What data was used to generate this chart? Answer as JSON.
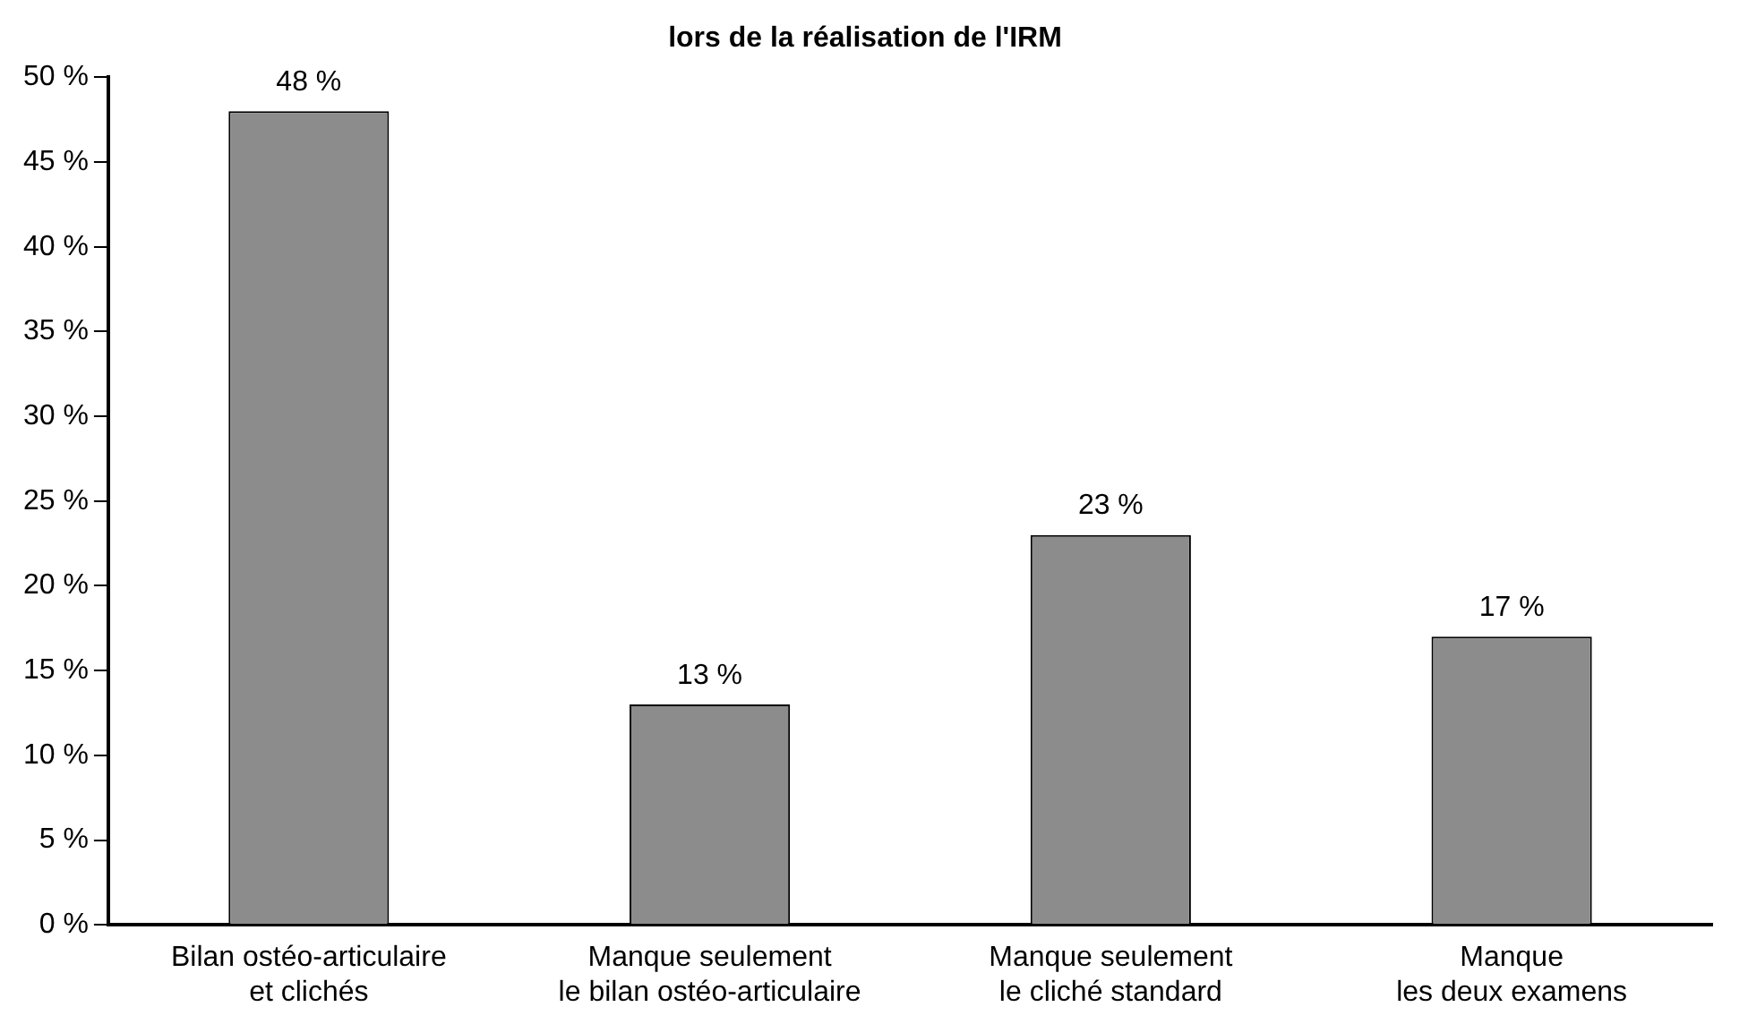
{
  "chart_data": {
    "type": "bar",
    "title": "lors de la réalisation de l'IRM",
    "categories": [
      "Bilan ostéo-articulaire\net clichés",
      "Manque seulement\nle bilan ostéo-articulaire",
      "Manque seulement\nle cliché standard",
      "Manque\nles deux examens"
    ],
    "values": [
      48,
      13,
      23,
      17
    ],
    "color": "#8c8c8c",
    "value_labels": [
      "48 %",
      "13 %",
      "23 %",
      "17 %"
    ],
    "ylim": [
      0,
      50
    ],
    "yticks": [
      {
        "value": 0,
        "label": "0 %"
      },
      {
        "value": 5,
        "label": "5 %"
      },
      {
        "value": 10,
        "label": "10 %"
      },
      {
        "value": 15,
        "label": "15 %"
      },
      {
        "value": 20,
        "label": "20 %"
      },
      {
        "value": 25,
        "label": "25 %"
      },
      {
        "value": 30,
        "label": "30 %"
      },
      {
        "value": 35,
        "label": "35 %"
      },
      {
        "value": 40,
        "label": "40 %"
      },
      {
        "value": 45,
        "label": "45 %"
      },
      {
        "value": 50,
        "label": "50 %"
      }
    ],
    "grid": false,
    "legend": false
  }
}
